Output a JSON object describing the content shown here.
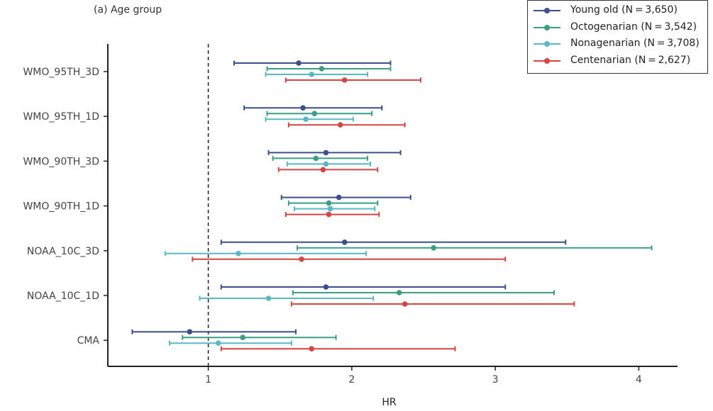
{
  "chart_data": {
    "type": "forest",
    "panel_label": "(a) Age group",
    "xlabel": "HR",
    "xlim": [
      0.3,
      4.27
    ],
    "xticks": [
      1,
      2,
      3,
      4
    ],
    "reference_line": 1,
    "categories": [
      "WMO_95TH_3D",
      "WMO_95TH_1D",
      "WMO_90TH_3D",
      "WMO_90TH_1D",
      "NOAA_10C_3D",
      "NOAA_10C_1D",
      "CMA"
    ],
    "legend_position": "top-right",
    "series": [
      {
        "name": "Young old (N = 3,650)",
        "color": "#3d4f8a",
        "points": [
          {
            "est": 1.63,
            "lo": 1.18,
            "hi": 2.27
          },
          {
            "est": 1.66,
            "lo": 1.25,
            "hi": 2.21
          },
          {
            "est": 1.82,
            "lo": 1.42,
            "hi": 2.34
          },
          {
            "est": 1.91,
            "lo": 1.51,
            "hi": 2.41
          },
          {
            "est": 1.95,
            "lo": 1.09,
            "hi": 3.49
          },
          {
            "est": 1.82,
            "lo": 1.09,
            "hi": 3.07
          },
          {
            "est": 0.87,
            "lo": 0.47,
            "hi": 1.61
          }
        ]
      },
      {
        "name": "Octogenarian (N = 3,542)",
        "color": "#3a9e85",
        "points": [
          {
            "est": 1.79,
            "lo": 1.41,
            "hi": 2.27
          },
          {
            "est": 1.74,
            "lo": 1.41,
            "hi": 2.14
          },
          {
            "est": 1.75,
            "lo": 1.45,
            "hi": 2.11
          },
          {
            "est": 1.84,
            "lo": 1.56,
            "hi": 2.18
          },
          {
            "est": 2.57,
            "lo": 1.62,
            "hi": 4.09
          },
          {
            "est": 2.33,
            "lo": 1.59,
            "hi": 3.41
          },
          {
            "est": 1.24,
            "lo": 0.82,
            "hi": 1.89
          }
        ]
      },
      {
        "name": "Nonagenarian (N = 3,708)",
        "color": "#5ab8c4",
        "points": [
          {
            "est": 1.72,
            "lo": 1.4,
            "hi": 2.11
          },
          {
            "est": 1.68,
            "lo": 1.4,
            "hi": 2.01
          },
          {
            "est": 1.82,
            "lo": 1.55,
            "hi": 2.13
          },
          {
            "est": 1.85,
            "lo": 1.6,
            "hi": 2.16
          },
          {
            "est": 1.21,
            "lo": 0.7,
            "hi": 2.1
          },
          {
            "est": 1.42,
            "lo": 0.94,
            "hi": 2.15
          },
          {
            "est": 1.07,
            "lo": 0.73,
            "hi": 1.58
          }
        ]
      },
      {
        "name": "Centenarian (N = 2,627)",
        "color": "#d64541",
        "points": [
          {
            "est": 1.95,
            "lo": 1.54,
            "hi": 2.48
          },
          {
            "est": 1.92,
            "lo": 1.56,
            "hi": 2.37
          },
          {
            "est": 1.8,
            "lo": 1.49,
            "hi": 2.18
          },
          {
            "est": 1.84,
            "lo": 1.54,
            "hi": 2.19
          },
          {
            "est": 1.65,
            "lo": 0.89,
            "hi": 3.07
          },
          {
            "est": 2.37,
            "lo": 1.58,
            "hi": 3.55
          },
          {
            "est": 1.72,
            "lo": 1.09,
            "hi": 2.72
          }
        ]
      }
    ]
  }
}
